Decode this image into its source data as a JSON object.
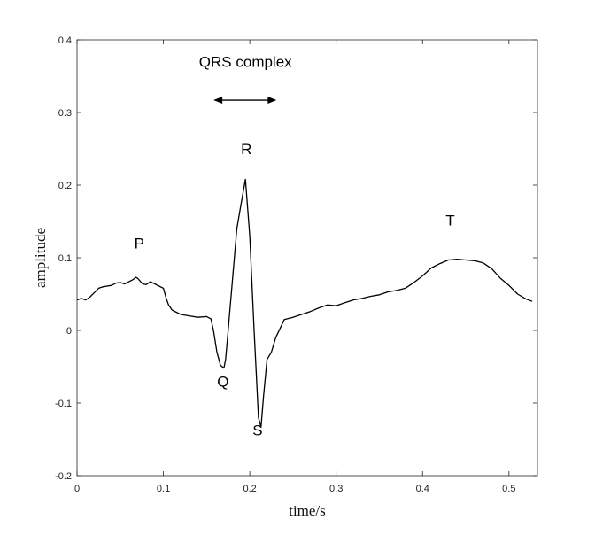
{
  "chart_data": {
    "type": "line",
    "title": "",
    "xlabel": "time/s",
    "ylabel": "amplitude",
    "xlim": [
      0,
      0.533
    ],
    "ylim": [
      -0.2,
      0.4
    ],
    "xticks": [
      0,
      0.1,
      0.2,
      0.3,
      0.4,
      0.5
    ],
    "xtick_labels": [
      "0",
      "0.1",
      "0.2",
      "0.3",
      "0.4",
      "0.5"
    ],
    "yticks": [
      -0.2,
      -0.1,
      0,
      0.1,
      0.2,
      0.3,
      0.4
    ],
    "ytick_labels": [
      "-0.2",
      "-0.1",
      "0",
      "0.1",
      "0.2",
      "0.3",
      "0.4"
    ],
    "grid": false,
    "line_color": "#000000",
    "series": [
      {
        "x": [
          0,
          0.005,
          0.01,
          0.015,
          0.02,
          0.025,
          0.03,
          0.035,
          0.04,
          0.045,
          0.05,
          0.055,
          0.06,
          0.065,
          0.068,
          0.07,
          0.073,
          0.076,
          0.08,
          0.085,
          0.09,
          0.095,
          0.1,
          0.103,
          0.106,
          0.11,
          0.115,
          0.12,
          0.13,
          0.14,
          0.15,
          0.155,
          0.158,
          0.162,
          0.166,
          0.17,
          0.172,
          0.175,
          0.18,
          0.185,
          0.19,
          0.195,
          0.2,
          0.205,
          0.21,
          0.213,
          0.216,
          0.22,
          0.225,
          0.23,
          0.24,
          0.25,
          0.26,
          0.27,
          0.28,
          0.29,
          0.3,
          0.31,
          0.32,
          0.33,
          0.34,
          0.35,
          0.36,
          0.37,
          0.38,
          0.39,
          0.4,
          0.41,
          0.42,
          0.43,
          0.44,
          0.45,
          0.46,
          0.47,
          0.48,
          0.49,
          0.5,
          0.51,
          0.52,
          0.527
        ],
        "y": [
          0.042,
          0.044,
          0.042,
          0.046,
          0.052,
          0.058,
          0.06,
          0.061,
          0.062,
          0.065,
          0.066,
          0.064,
          0.067,
          0.07,
          0.073,
          0.072,
          0.068,
          0.064,
          0.063,
          0.067,
          0.064,
          0.061,
          0.058,
          0.045,
          0.035,
          0.028,
          0.025,
          0.022,
          0.02,
          0.018,
          0.019,
          0.016,
          0.0,
          -0.03,
          -0.048,
          -0.052,
          -0.04,
          0.0,
          0.07,
          0.14,
          0.175,
          0.208,
          0.13,
          0.0,
          -0.12,
          -0.133,
          -0.09,
          -0.04,
          -0.03,
          -0.01,
          0.015,
          0.018,
          0.022,
          0.026,
          0.031,
          0.035,
          0.034,
          0.038,
          0.042,
          0.044,
          0.047,
          0.049,
          0.053,
          0.055,
          0.058,
          0.066,
          0.075,
          0.086,
          0.092,
          0.097,
          0.098,
          0.097,
          0.096,
          0.093,
          0.085,
          0.072,
          0.062,
          0.05,
          0.043,
          0.04
        ]
      }
    ],
    "annotations": [
      {
        "text": "QRS complex",
        "x": 0.195,
        "y": 0.37
      },
      {
        "text": "P",
        "x": 0.072,
        "y": 0.12
      },
      {
        "text": "R",
        "x": 0.196,
        "y": 0.25
      },
      {
        "text": "T",
        "x": 0.432,
        "y": 0.152
      },
      {
        "text": "Q",
        "x": 0.169,
        "y": -0.07
      },
      {
        "text": "S",
        "x": 0.209,
        "y": -0.137
      }
    ],
    "arrow": {
      "x_start": 0.158,
      "x_end": 0.231,
      "y": 0.317,
      "style": "double-headed"
    }
  }
}
